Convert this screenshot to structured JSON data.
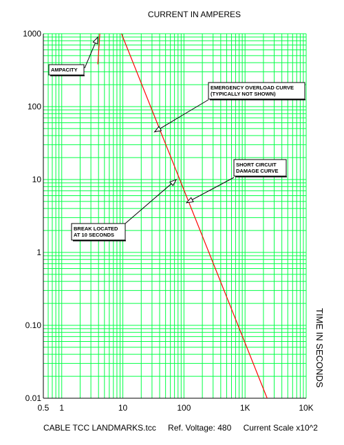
{
  "titles": {
    "top": "CURRENT IN AMPERES",
    "side": "TIME IN SECONDS"
  },
  "footer": {
    "file": "CABLE TCC LANDMARKS.tcc",
    "voltage": "Ref. Voltage: 480",
    "scale": "Current Scale x10^2"
  },
  "colors": {
    "grid": "#00ff44",
    "curve": "#ff0000",
    "axis": "#000000"
  },
  "chart_data": {
    "type": "line",
    "title": "CURRENT IN AMPERES",
    "xlabel": "CURRENT IN AMPERES",
    "ylabel": "TIME IN SECONDS",
    "xscale": "log",
    "yscale": "log",
    "xlim": [
      0.5,
      10000
    ],
    "ylim": [
      0.01,
      1000
    ],
    "grid": true,
    "x_tick_labels": [
      {
        "value": 0.5,
        "label": "0.5"
      },
      {
        "value": 1,
        "label": "1"
      },
      {
        "value": 10,
        "label": "10"
      },
      {
        "value": 100,
        "label": "100"
      },
      {
        "value": 1000,
        "label": "1K"
      },
      {
        "value": 10000,
        "label": "10K"
      }
    ],
    "y_tick_labels": [
      {
        "value": 1000,
        "label": "1000"
      },
      {
        "value": 100,
        "label": "100"
      },
      {
        "value": 10,
        "label": "10"
      },
      {
        "value": 1,
        "label": "1"
      },
      {
        "value": 0.1,
        "label": "0.10"
      },
      {
        "value": 0.01,
        "label": "0.01"
      }
    ],
    "series": [
      {
        "values": [
          [
            4.2,
            1000
          ],
          [
            3.9,
            380
          ]
        ],
        "color": "#ff0000"
      },
      {
        "values": [
          [
            9.5,
            1000
          ],
          [
            2300,
            0.01
          ]
        ],
        "color": "#ff0000"
      }
    ],
    "annotations": [
      {
        "name": "ampacity",
        "lines": [
          "AMPACITY"
        ],
        "point": [
          3.9,
          900
        ]
      },
      {
        "name": "emergency",
        "lines": [
          "EMERGENCY OVERLOAD CURVE",
          "(TYPICALLY NOT SHOWN)"
        ],
        "point": [
          33,
          45
        ]
      },
      {
        "name": "short-circuit",
        "lines": [
          "SHORT CIRCUIT",
          "DAMAGE CURVE"
        ],
        "point": [
          110,
          4.8
        ]
      },
      {
        "name": "break",
        "lines": [
          "BREAK LOCATED",
          "AT 10 SECONDS"
        ],
        "point": [
          75,
          10
        ]
      }
    ]
  }
}
